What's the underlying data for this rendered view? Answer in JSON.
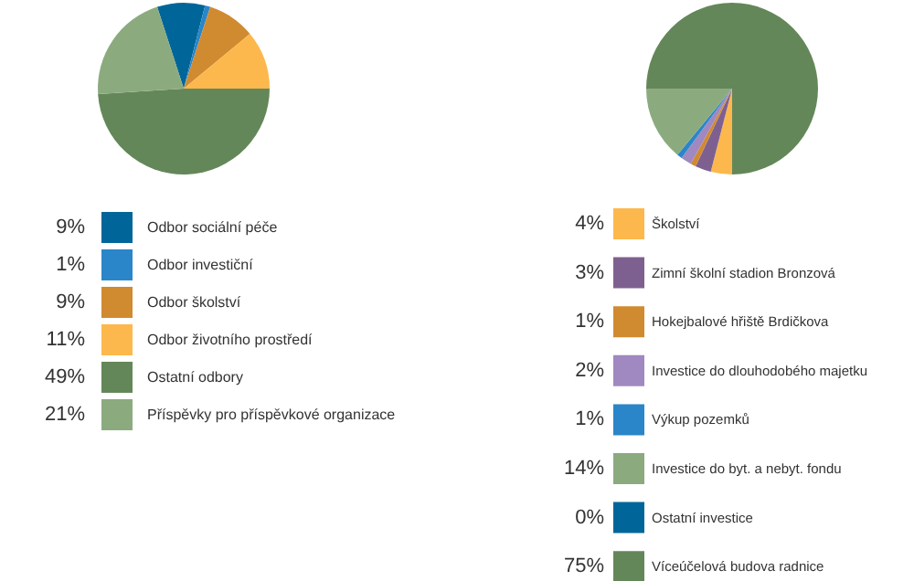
{
  "chart_data": [
    {
      "type": "pie",
      "categories": [
        "Odbor sociální péče",
        "Odbor investiční",
        "Odbor školství",
        "Odbor životního prostředí",
        "Ostatní odbory",
        "Příspěvky pro příspěvkové organizace"
      ],
      "values": [
        9,
        1,
        9,
        11,
        49,
        21
      ],
      "value_labels": [
        "9%",
        "1%",
        "9%",
        "11%",
        "49%",
        "21%"
      ],
      "colors": [
        "#006699",
        "#2a86c8",
        "#d08a30",
        "#fcb84c",
        "#648759",
        "#8bab7f"
      ],
      "legend": "bottom"
    },
    {
      "type": "pie",
      "categories": [
        "Školství",
        "Zimní školní stadion Bronzová",
        "Hokejbalové hřiště Brdičkova",
        "Investice do dlouhodobého majetku",
        "Výkup pozemků",
        "Investice do byt. a nebyt. fondu",
        "Ostatní investice",
        "Víceúčelová budova radnice"
      ],
      "values": [
        4,
        3,
        1,
        2,
        1,
        14,
        0,
        75
      ],
      "value_labels": [
        "4%",
        "3%",
        "1%",
        "2%",
        "1%",
        "14%",
        "0%",
        "75%"
      ],
      "colors": [
        "#fcb84c",
        "#7e6090",
        "#d08a30",
        "#a088c0",
        "#2a86c8",
        "#8bab7f",
        "#006699",
        "#648759"
      ],
      "legend": "bottom"
    }
  ]
}
